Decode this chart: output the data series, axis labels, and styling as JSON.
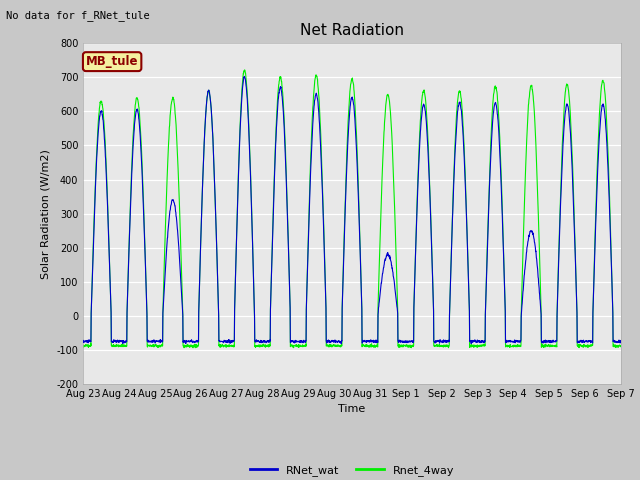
{
  "title": "Net Radiation",
  "xlabel": "Time",
  "ylabel": "Solar Radiation (W/m2)",
  "ylim": [
    -200,
    800
  ],
  "yticks": [
    -200,
    -100,
    0,
    100,
    200,
    300,
    400,
    500,
    600,
    700,
    800
  ],
  "xtick_labels": [
    "Aug 23",
    "Aug 24",
    "Aug 25",
    "Aug 26",
    "Aug 27",
    "Aug 28",
    "Aug 29",
    "Aug 30",
    "Aug 31",
    "Sep 1",
    "Sep 2",
    "Sep 3",
    "Sep 4",
    "Sep 5",
    "Sep 6",
    "Sep 7"
  ],
  "top_left_text": "No data for f_RNet_tule",
  "legend_box_text": "MB_tule",
  "legend_box_color": "#f5f0a0",
  "legend_box_border": "#8b0000",
  "line1_color": "#0000cd",
  "line2_color": "#00ee00",
  "line1_label": "RNet_wat",
  "line2_label": "Rnet_4way",
  "bg_color": "#c8c8c8",
  "plot_bg_color": "#e8e8e8",
  "n_days": 15,
  "night_val_wat": -75,
  "night_val_4way": -88,
  "peak_wat": [
    600,
    605,
    340,
    660,
    700,
    670,
    650,
    640,
    180,
    620,
    625,
    625,
    250,
    620,
    620
  ],
  "peak_4way": [
    630,
    640,
    640,
    660,
    720,
    700,
    705,
    695,
    650,
    660,
    660,
    675,
    675,
    680,
    690
  ],
  "title_fontsize": 11,
  "axis_label_fontsize": 8,
  "tick_fontsize": 7,
  "legend_fontsize": 8
}
